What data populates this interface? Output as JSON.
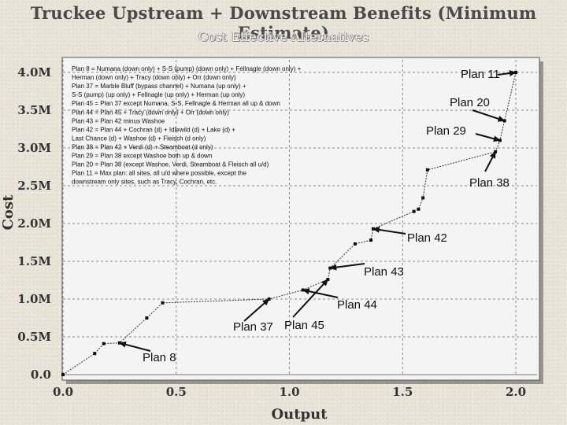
{
  "header": {
    "title": "Truckee Upstream + Downstream Benefits (Minimum Estimate)",
    "subtitle": "Cost Effective Alternatives"
  },
  "legend_lines": [
    "Plan 8 = Numana (down only) +  S-S (pump) (down only) + Fellnagle (down only) +",
    "Herman (down only) + Tracy (down only) + Orr (down only)",
    "Plan 37 = Marble Bluff (bypass channel) + Numana (up only) +",
    "S-S (pump) (up only) + Fellnagle (up only) + Herman (up only)",
    "Plan 45 = Plan 37 except Numana, S-S, Fellnagle & Herman all up & down",
    "Plan 44 = Plan 45 + Tracy (down only) + Orr (down only)",
    "Plan 43 = Plan 42 minus Washoe",
    "Plan 42 = Plan 44 + Cochran (d) + Idlewild (d) + Lake (d) +",
    "Last Chance (d) + Washoe (d) + Fleisch (d only)",
    "Plan 38 = Plan 42 + Verdi (d) + Steamboat (d only)",
    "Plan 29 = Plan 38 except Washoe both up & down",
    "Plan 20 = Plan 38 (except Washoe, Verdi, Steamboat & Fleisch all u/d)",
    "Plan 11 = Max plan:  all sites, all u/d where possible, except the",
    "downstream only sites, such as Tracy, Cochran, etc."
  ],
  "chart_data": {
    "type": "line",
    "title": "Truckee Upstream + Downstream Benefits (Minimum Estimate)",
    "subtitle": "Cost Effective Alternatives",
    "xlabel": "Output",
    "ylabel": "Cost",
    "xlim": [
      0,
      2.1
    ],
    "ylim": [
      0,
      4.15
    ],
    "xticks": [
      {
        "v": 0.0,
        "label": "0.0"
      },
      {
        "v": 0.5,
        "label": "0.5"
      },
      {
        "v": 1.0,
        "label": "1.0"
      },
      {
        "v": 1.5,
        "label": "1.5"
      },
      {
        "v": 2.0,
        "label": "2.0"
      }
    ],
    "yticks": [
      {
        "v": 0.0,
        "label": "0.0"
      },
      {
        "v": 0.5,
        "label": "0.5M"
      },
      {
        "v": 1.0,
        "label": "1.0M"
      },
      {
        "v": 1.5,
        "label": "1.5M"
      },
      {
        "v": 2.0,
        "label": "2.0M"
      },
      {
        "v": 2.5,
        "label": "2.5M"
      },
      {
        "v": 3.0,
        "label": "3.0M"
      },
      {
        "v": 3.5,
        "label": "3.5M"
      },
      {
        "v": 4.0,
        "label": "4.0M"
      }
    ],
    "points": [
      {
        "x": 0.0,
        "y": 0.0
      },
      {
        "x": 0.14,
        "y": 0.28
      },
      {
        "x": 0.18,
        "y": 0.41
      },
      {
        "x": 0.25,
        "y": 0.42
      },
      {
        "x": 0.37,
        "y": 0.75
      },
      {
        "x": 0.44,
        "y": 0.95
      },
      {
        "x": 0.91,
        "y": 1.0
      },
      {
        "x": 1.06,
        "y": 1.12
      },
      {
        "x": 1.17,
        "y": 1.26
      },
      {
        "x": 1.18,
        "y": 1.41
      },
      {
        "x": 1.29,
        "y": 1.73
      },
      {
        "x": 1.36,
        "y": 1.78
      },
      {
        "x": 1.37,
        "y": 1.93
      },
      {
        "x": 1.55,
        "y": 2.16
      },
      {
        "x": 1.57,
        "y": 2.19
      },
      {
        "x": 1.59,
        "y": 2.34
      },
      {
        "x": 1.61,
        "y": 2.71
      },
      {
        "x": 1.91,
        "y": 2.95
      },
      {
        "x": 1.93,
        "y": 3.1
      },
      {
        "x": 1.95,
        "y": 3.36
      },
      {
        "x": 2.0,
        "y": 4.0
      }
    ],
    "annotations": [
      {
        "text": "Plan 11",
        "x": 2.0,
        "y": 4.0
      },
      {
        "text": "Plan 20",
        "x": 1.95,
        "y": 3.36
      },
      {
        "text": "Plan 29",
        "x": 1.93,
        "y": 3.1
      },
      {
        "text": "Plan 38",
        "x": 1.91,
        "y": 2.95
      },
      {
        "text": "Plan 42",
        "x": 1.37,
        "y": 1.93
      },
      {
        "text": "Plan 43",
        "x": 1.18,
        "y": 1.41
      },
      {
        "text": "Plan 44",
        "x": 1.06,
        "y": 1.12
      },
      {
        "text": "Plan 37",
        "x": 0.91,
        "y": 1.0
      },
      {
        "text": "Plan 45",
        "x": 1.17,
        "y": 1.26
      },
      {
        "text": "Plan 8",
        "x": 0.25,
        "y": 0.42
      }
    ],
    "colors": {
      "line": "#333333",
      "marker": "#111111",
      "grid": "#8a8a8a",
      "plot_bg": "#f4f4f4"
    }
  }
}
